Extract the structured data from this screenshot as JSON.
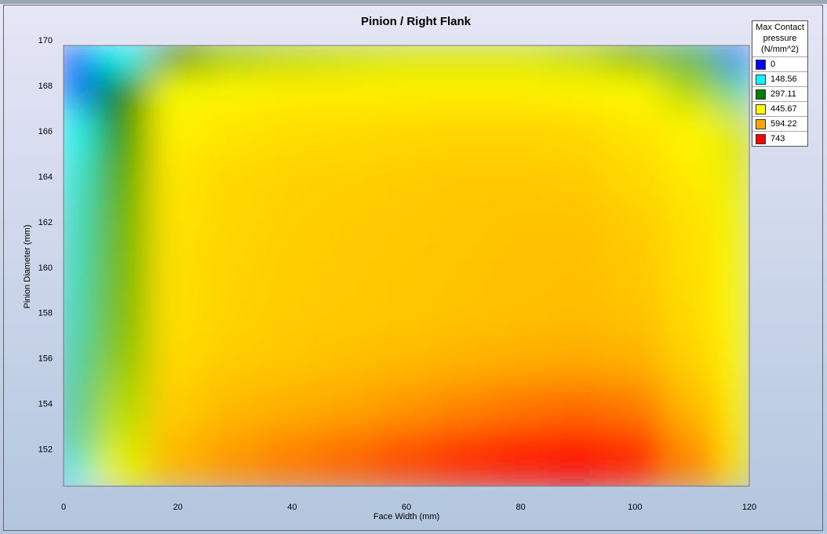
{
  "chart_data": {
    "type": "heatmap",
    "title": "Pinion / Right Flank",
    "xlabel": "Face Width (mm)",
    "ylabel": "Pinion Diameter (mm)",
    "xlim": [
      0,
      120
    ],
    "xticks": [
      0,
      20,
      40,
      60,
      80,
      100,
      120
    ],
    "ylim": [
      150.4,
      169.8
    ],
    "yticks": [
      152,
      154,
      156,
      158,
      160,
      162,
      164,
      166,
      168,
      170
    ],
    "x": [
      0,
      10,
      20,
      30,
      40,
      50,
      60,
      70,
      80,
      90,
      100,
      110,
      120
    ],
    "y": [
      169.3,
      168,
      166,
      164,
      162,
      160,
      158,
      156,
      154,
      152,
      150.8
    ],
    "z": [
      [
        0,
        150,
        300,
        380,
        400,
        410,
        420,
        420,
        420,
        400,
        350,
        250,
        50
      ],
      [
        60,
        300,
        440,
        460,
        470,
        470,
        470,
        470,
        470,
        460,
        450,
        400,
        200
      ],
      [
        150,
        330,
        470,
        490,
        500,
        505,
        510,
        515,
        515,
        510,
        490,
        460,
        420
      ],
      [
        170,
        350,
        490,
        510,
        520,
        525,
        530,
        535,
        535,
        530,
        510,
        480,
        430
      ],
      [
        180,
        360,
        495,
        515,
        525,
        530,
        535,
        540,
        545,
        545,
        530,
        495,
        440
      ],
      [
        185,
        365,
        498,
        518,
        528,
        533,
        538,
        543,
        548,
        550,
        538,
        500,
        442
      ],
      [
        190,
        370,
        500,
        520,
        530,
        535,
        540,
        545,
        550,
        555,
        545,
        505,
        445
      ],
      [
        200,
        380,
        510,
        530,
        540,
        550,
        560,
        570,
        580,
        585,
        575,
        520,
        450
      ],
      [
        210,
        400,
        530,
        560,
        575,
        590,
        605,
        620,
        635,
        645,
        630,
        560,
        460
      ],
      [
        200,
        420,
        560,
        600,
        620,
        640,
        665,
        690,
        710,
        720,
        700,
        610,
        470
      ],
      [
        150,
        440,
        580,
        620,
        645,
        665,
        690,
        715,
        735,
        743,
        720,
        630,
        480
      ]
    ],
    "legend_title": "Max Contact pressure (N/mm^2)",
    "colorscale": {
      "values": [
        0,
        148.56,
        297.11,
        445.67,
        594.22,
        743
      ],
      "colors": [
        "#0000ff",
        "#00ffff",
        "#008000",
        "#ffff00",
        "#ffa500",
        "#ff0000"
      ]
    }
  }
}
